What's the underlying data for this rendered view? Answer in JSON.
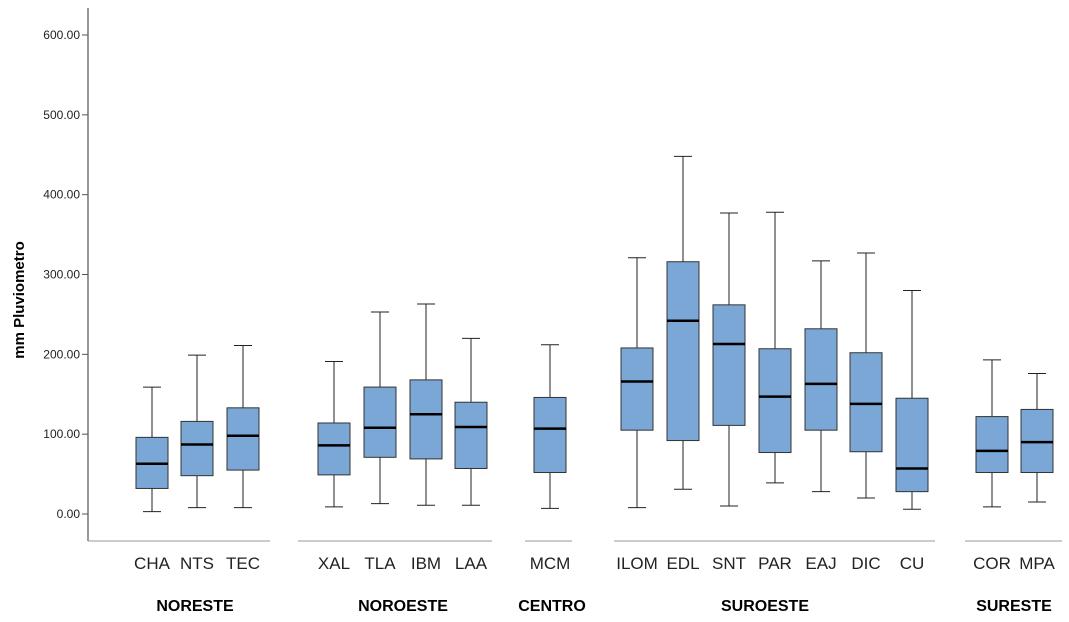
{
  "chart_data": {
    "type": "boxplot",
    "ylabel": "mm Pluviometro",
    "ylim": [
      0,
      600
    ],
    "yticks": [
      "0.00",
      "100.00",
      "200.00",
      "300.00",
      "400.00",
      "500.00",
      "600.00"
    ],
    "box_color": "#7aa7d6",
    "groups": [
      {
        "label": "NORESTE",
        "items": [
          {
            "name": "CHA",
            "min": 3,
            "q1": 32,
            "median": 63,
            "q3": 96,
            "max": 159
          },
          {
            "name": "NTS",
            "min": 8,
            "q1": 48,
            "median": 87,
            "q3": 116,
            "max": 199
          },
          {
            "name": "TEC",
            "min": 8,
            "q1": 55,
            "median": 98,
            "q3": 133,
            "max": 211
          }
        ]
      },
      {
        "label": "NOROESTE",
        "items": [
          {
            "name": "XAL",
            "min": 9,
            "q1": 49,
            "median": 86,
            "q3": 114,
            "max": 191
          },
          {
            "name": "TLA",
            "min": 13,
            "q1": 71,
            "median": 108,
            "q3": 159,
            "max": 253
          },
          {
            "name": "IBM",
            "min": 11,
            "q1": 69,
            "median": 125,
            "q3": 168,
            "max": 263
          },
          {
            "name": "LAA",
            "min": 11,
            "q1": 57,
            "median": 109,
            "q3": 140,
            "max": 220
          }
        ]
      },
      {
        "label": "CENTRO",
        "items": [
          {
            "name": "MCM",
            "min": 7,
            "q1": 52,
            "median": 107,
            "q3": 146,
            "max": 212
          }
        ]
      },
      {
        "label": "SUROESTE",
        "items": [
          {
            "name": "ILOM",
            "min": 8,
            "q1": 105,
            "median": 166,
            "q3": 208,
            "max": 321
          },
          {
            "name": "EDL",
            "min": 31,
            "q1": 92,
            "median": 242,
            "q3": 316,
            "max": 448
          },
          {
            "name": "SNT",
            "min": 10,
            "q1": 111,
            "median": 213,
            "q3": 262,
            "max": 377
          },
          {
            "name": "PAR",
            "min": 39,
            "q1": 77,
            "median": 147,
            "q3": 207,
            "max": 378
          },
          {
            "name": "EAJ",
            "min": 28,
            "q1": 105,
            "median": 163,
            "q3": 232,
            "max": 317
          },
          {
            "name": "DIC",
            "min": 20,
            "q1": 78,
            "median": 138,
            "q3": 202,
            "max": 327
          },
          {
            "name": "CU",
            "min": 6,
            "q1": 28,
            "median": 57,
            "q3": 145,
            "max": 280
          }
        ]
      },
      {
        "label": "SURESTE",
        "items": [
          {
            "name": "COR",
            "min": 9,
            "q1": 52,
            "median": 79,
            "q3": 122,
            "max": 193
          },
          {
            "name": "MPA",
            "min": 15,
            "q1": 52,
            "median": 90,
            "q3": 131,
            "max": 176
          }
        ]
      }
    ]
  }
}
